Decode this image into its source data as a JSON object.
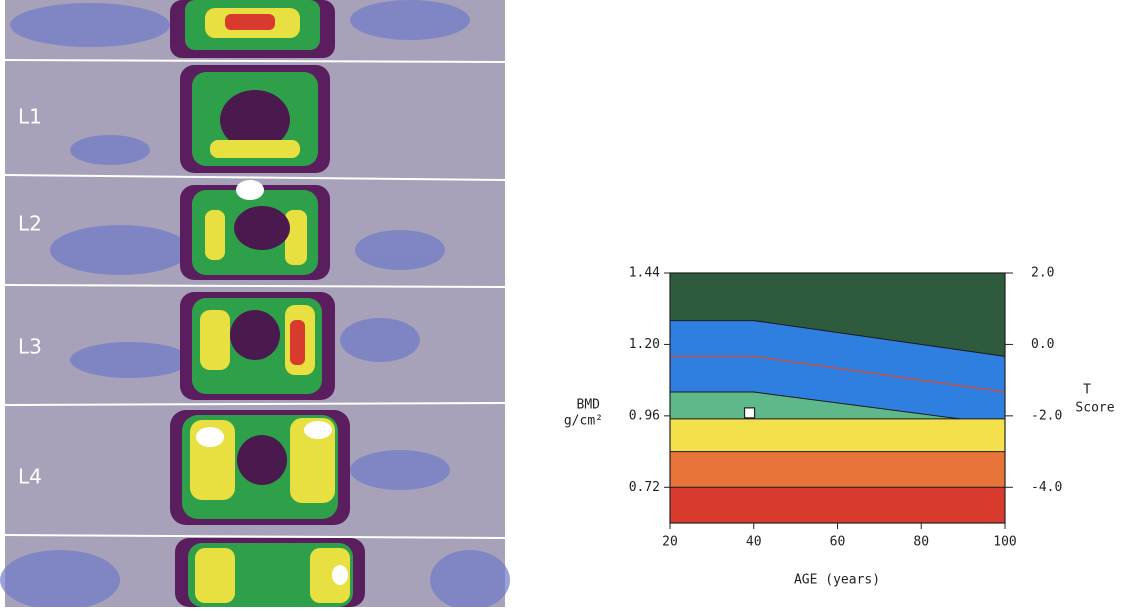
{
  "scan": {
    "labels": [
      "L1",
      "L2",
      "L3",
      "L4"
    ]
  },
  "chart_data": {
    "type": "area",
    "x_label": "AGE (years)",
    "y_label": [
      "BMD",
      "g/cm²"
    ],
    "y2_label": [
      "T",
      "Score"
    ],
    "x": [
      20,
      40,
      100
    ],
    "series": [
      {
        "color": "#2e5a3e",
        "values": [
          1.44,
          1.44,
          1.44
        ]
      },
      {
        "color": "#2f7fe0",
        "values": [
          1.28,
          1.28,
          1.16
        ]
      },
      {
        "color": "#5fb889",
        "values": [
          1.04,
          1.04,
          0.93
        ]
      },
      {
        "color": "#f4e04a",
        "values": [
          0.95,
          0.95,
          0.95
        ]
      },
      {
        "color": "#e8743a",
        "values": [
          0.84,
          0.84,
          0.84
        ]
      },
      {
        "color": "#d83a2e",
        "values": [
          0.72,
          0.72,
          0.72
        ]
      }
    ],
    "line": {
      "color": "#c0504d",
      "values": [
        1.16,
        1.16,
        1.04
      ]
    },
    "point": {
      "x": 39,
      "y": 0.97,
      "color": "#ffffff"
    },
    "xlim": [
      20,
      100
    ],
    "xticks": [
      20,
      40,
      60,
      80,
      100
    ],
    "ylim": [
      0.6,
      1.44
    ],
    "yticks": [
      {
        "value": 1.44,
        "label": "1.44"
      },
      {
        "value": 1.2,
        "label": "1.20"
      },
      {
        "value": 0.96,
        "label": "0.96"
      },
      {
        "value": 0.72,
        "label": "0.72"
      }
    ],
    "y2lim": [
      -5,
      2
    ],
    "y2ticks": [
      {
        "value": 2,
        "label": "2.0"
      },
      {
        "value": 0,
        "label": "0.0"
      },
      {
        "value": -2,
        "label": "-2.0"
      },
      {
        "value": -4,
        "label": "-4.0"
      }
    ]
  }
}
